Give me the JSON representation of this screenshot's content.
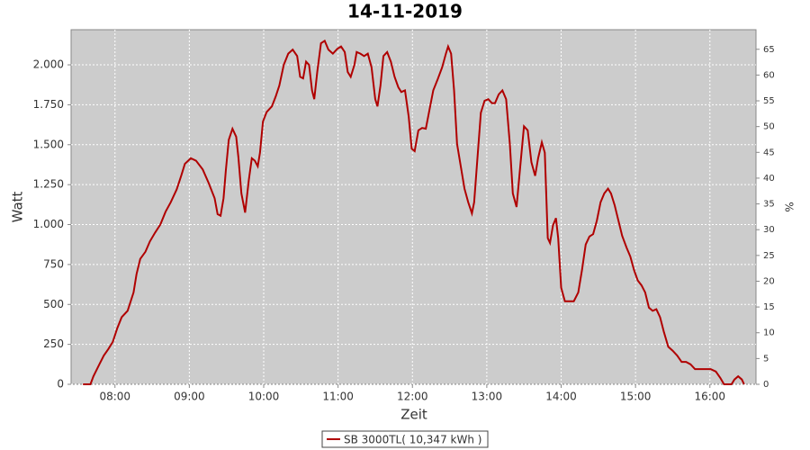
{
  "chart_data": {
    "type": "line",
    "title": "14-11-2019",
    "xlabel": "Zeit",
    "ylabel": "Watt",
    "y2label": "%",
    "x": [
      7.57,
      7.67,
      7.71,
      7.79,
      7.85,
      7.91,
      7.97,
      8.03,
      8.09,
      8.17,
      8.25,
      8.29,
      8.34,
      8.41,
      8.47,
      8.54,
      8.61,
      8.68,
      8.75,
      8.83,
      8.89,
      8.94,
      9.02,
      9.09,
      9.18,
      9.26,
      9.34,
      9.38,
      9.42,
      9.46,
      9.49,
      9.53,
      9.58,
      9.63,
      9.66,
      9.7,
      9.75,
      9.8,
      9.84,
      9.88,
      9.92,
      9.95,
      9.99,
      10.04,
      10.11,
      10.16,
      10.21,
      10.27,
      10.33,
      10.39,
      10.45,
      10.49,
      10.53,
      10.57,
      10.61,
      10.65,
      10.68,
      10.72,
      10.77,
      10.82,
      10.87,
      10.93,
      10.99,
      11.04,
      11.09,
      11.13,
      11.17,
      11.22,
      11.25,
      11.3,
      11.35,
      11.4,
      11.45,
      11.5,
      11.53,
      11.57,
      11.61,
      11.66,
      11.71,
      11.76,
      11.81,
      11.85,
      11.9,
      11.95,
      11.99,
      12.03,
      12.08,
      12.13,
      12.18,
      12.23,
      12.28,
      12.34,
      12.4,
      12.45,
      12.48,
      12.52,
      12.56,
      12.6,
      12.65,
      12.7,
      12.75,
      12.8,
      12.83,
      12.87,
      12.92,
      12.97,
      13.02,
      13.07,
      13.11,
      13.16,
      13.21,
      13.26,
      13.31,
      13.35,
      13.4,
      13.45,
      13.5,
      13.55,
      13.6,
      13.65,
      13.69,
      13.74,
      13.78,
      13.82,
      13.85,
      13.89,
      13.93,
      13.96,
      14.0,
      14.05,
      14.11,
      14.17,
      14.23,
      14.28,
      14.33,
      14.38,
      14.43,
      14.48,
      14.53,
      14.58,
      14.63,
      14.67,
      14.72,
      14.77,
      14.82,
      14.88,
      14.93,
      14.98,
      15.03,
      15.08,
      15.13,
      15.18,
      15.23,
      15.28,
      15.33,
      15.38,
      15.44,
      15.5,
      15.56,
      15.62,
      15.68,
      15.74,
      15.8,
      15.87,
      15.94,
      16.01,
      16.08,
      16.14,
      16.19,
      16.24,
      16.29,
      16.33,
      16.38,
      16.43,
      16.46
    ],
    "series": [
      {
        "name": "SB 3000TL( 10,347 kWh )",
        "color": "#b00000",
        "values": [
          0,
          0,
          50,
          125,
          180,
          220,
          265,
          350,
          420,
          460,
          575,
          690,
          785,
          830,
          895,
          950,
          1000,
          1080,
          1140,
          1220,
          1305,
          1380,
          1415,
          1400,
          1345,
          1260,
          1165,
          1065,
          1055,
          1165,
          1335,
          1530,
          1600,
          1550,
          1420,
          1195,
          1075,
          1280,
          1415,
          1400,
          1365,
          1450,
          1645,
          1705,
          1740,
          1800,
          1870,
          2000,
          2070,
          2095,
          2055,
          1925,
          1915,
          2020,
          2000,
          1840,
          1785,
          1955,
          2135,
          2150,
          2095,
          2070,
          2100,
          2115,
          2080,
          1955,
          1925,
          2000,
          2080,
          2070,
          2055,
          2070,
          1985,
          1785,
          1740,
          1870,
          2055,
          2080,
          2020,
          1925,
          1860,
          1830,
          1840,
          1675,
          1475,
          1460,
          1590,
          1605,
          1600,
          1720,
          1840,
          1910,
          1985,
          2070,
          2115,
          2070,
          1840,
          1505,
          1365,
          1225,
          1140,
          1070,
          1140,
          1390,
          1700,
          1775,
          1785,
          1760,
          1760,
          1815,
          1840,
          1785,
          1505,
          1195,
          1110,
          1365,
          1615,
          1590,
          1390,
          1305,
          1415,
          1515,
          1450,
          915,
          885,
          995,
          1040,
          915,
          605,
          520,
          520,
          520,
          575,
          715,
          875,
          925,
          940,
          1025,
          1140,
          1195,
          1225,
          1195,
          1120,
          1025,
          930,
          855,
          800,
          715,
          650,
          620,
          575,
          480,
          460,
          470,
          420,
          330,
          235,
          210,
          180,
          140,
          140,
          125,
          95,
          95,
          95,
          95,
          80,
          40,
          0,
          0,
          0,
          30,
          50,
          30,
          0
        ]
      }
    ],
    "xlim": [
      7.41,
      16.62
    ],
    "xticks": [
      {
        "value": 8,
        "label": "08:00"
      },
      {
        "value": 9,
        "label": "09:00"
      },
      {
        "value": 10,
        "label": "10:00"
      },
      {
        "value": 11,
        "label": "11:00"
      },
      {
        "value": 12,
        "label": "12:00"
      },
      {
        "value": 13,
        "label": "13:00"
      },
      {
        "value": 14,
        "label": "14:00"
      },
      {
        "value": 15,
        "label": "15:00"
      },
      {
        "value": 16,
        "label": "16:00"
      }
    ],
    "ylim": [
      0,
      2220
    ],
    "yticks": [
      0,
      250,
      500,
      750,
      {
        "value": 1000,
        "label": "1.000"
      },
      {
        "value": 1250,
        "label": "1.250"
      },
      {
        "value": 1500,
        "label": "1.500"
      },
      {
        "value": 1750,
        "label": "1.750"
      },
      {
        "value": 2000,
        "label": "2.000"
      }
    ],
    "y2lim": [
      0,
      68.8
    ],
    "y2ticks": [
      0,
      5,
      10,
      15,
      20,
      25,
      30,
      35,
      40,
      45,
      50,
      55,
      60,
      65
    ],
    "grid": true,
    "legend": "bottom"
  }
}
